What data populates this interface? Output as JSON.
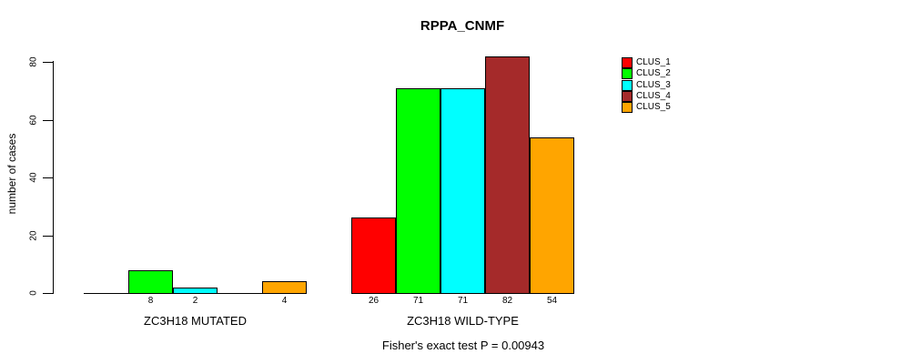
{
  "chart_data": {
    "type": "bar",
    "title": "RPPA_CNMF",
    "ylabel": "number of cases",
    "ylim": [
      0,
      80
    ],
    "yticks": [
      0,
      20,
      40,
      60,
      80
    ],
    "grid": false,
    "legend_position": "top-right-outside",
    "categories": [
      "ZC3H18 MUTATED",
      "ZC3H18 WILD-TYPE"
    ],
    "series": [
      {
        "name": "CLUS_1",
        "color": "#FF0000",
        "values": [
          0,
          26
        ]
      },
      {
        "name": "CLUS_2",
        "color": "#00FF00",
        "values": [
          8,
          71
        ]
      },
      {
        "name": "CLUS_3",
        "color": "#00FFFF",
        "values": [
          2,
          71
        ]
      },
      {
        "name": "CLUS_4",
        "color": "#A52A2A",
        "values": [
          0,
          82
        ]
      },
      {
        "name": "CLUS_5",
        "color": "#FFA500",
        "values": [
          4,
          54
        ]
      }
    ],
    "bar_value_labels": [
      [
        "",
        "8",
        "2",
        "",
        "4"
      ],
      [
        "26",
        "71",
        "71",
        "82",
        "54"
      ]
    ],
    "annotation": "Fisher's exact test P = 0.00943",
    "axis_color": "#000000",
    "background_color": "#FFFFFF"
  }
}
